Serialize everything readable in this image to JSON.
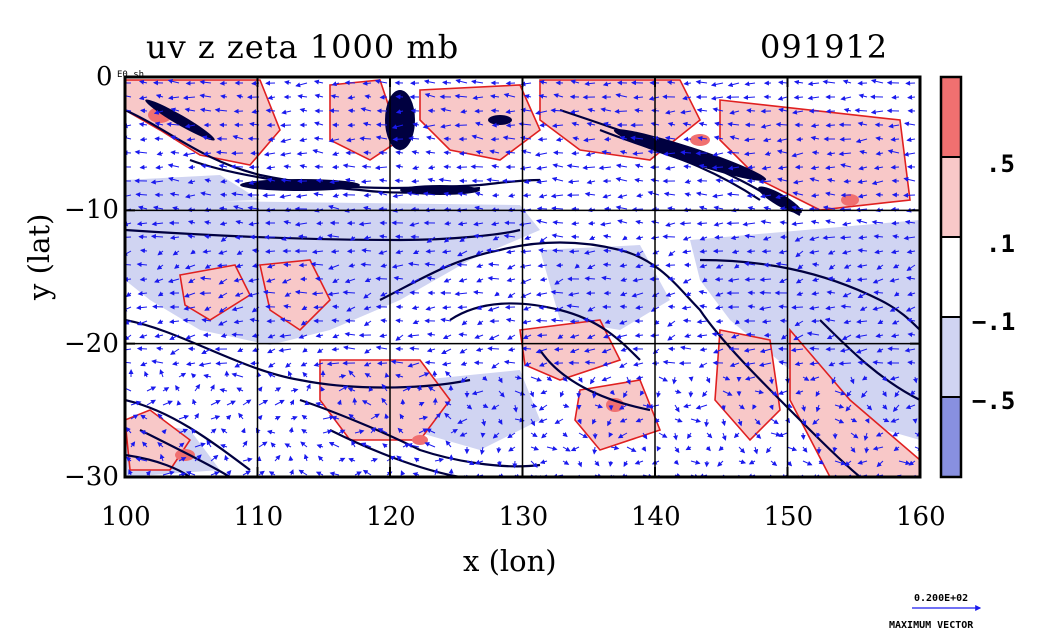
{
  "header": {
    "title": "uv z zeta 1000 mb",
    "stamp": "091912"
  },
  "chart_data": {
    "type": "heatmap",
    "title": "uv z zeta 1000 mb",
    "xlabel": "x (lon)",
    "ylabel": "y (lat)",
    "xlim": [
      100,
      160
    ],
    "ylim": [
      -30,
      0
    ],
    "xticks": [
      "100",
      "110",
      "120",
      "130",
      "140",
      "150",
      "160"
    ],
    "yticks": [
      "0",
      "−10",
      "−20",
      "−30"
    ],
    "xtick_values": [
      100,
      110,
      120,
      130,
      140,
      150,
      160
    ],
    "ytick_values": [
      0,
      -10,
      -20,
      -30
    ],
    "gridlines_x": [
      110,
      120,
      130,
      140,
      150
    ],
    "gridlines_y": [
      -10,
      -20
    ],
    "grid": true,
    "colorbar": {
      "labels": [
        ".5",
        ".1",
        "−.1",
        "−.5"
      ],
      "levels": [
        0.5,
        0.1,
        -0.1,
        -0.5
      ],
      "colors": [
        "#f07070",
        "#f8c8c8",
        "#ffffff",
        "#d0d4f2",
        "#8890e0"
      ]
    },
    "vector_reference": {
      "value": "0.200E+02",
      "caption": "MAXIMUM VECTOR"
    },
    "corner_label": "E0 sh"
  },
  "colors": {
    "vectors": "#1a1aee",
    "positive_contour": "#e02020",
    "negative_fill": "#d0d4f2",
    "positive_fill": "#f8c8c8",
    "strong_positive": "#f07070",
    "height_contour": "#000040"
  }
}
